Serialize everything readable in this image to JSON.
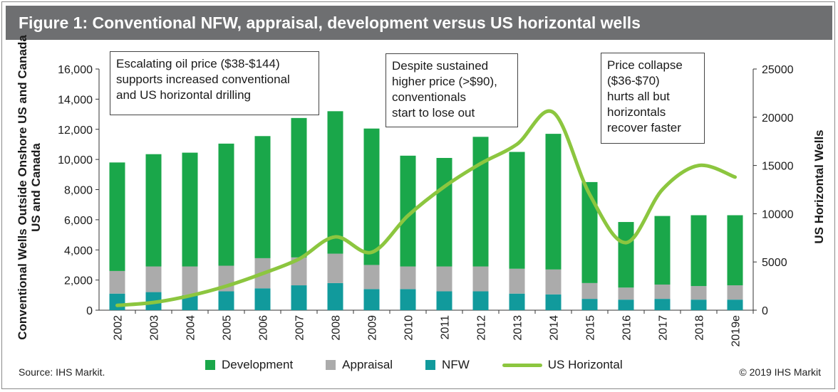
{
  "title": "Figure 1: Conventional NFW, appraisal, development versus US horizontal wells",
  "source": "Source: IHS Markit.",
  "copyright": "© 2019 IHS Markit",
  "annotations": [
    "Escalating oil price ($38-$144)\nsupports increased conventional\nand US horizontal drilling",
    "Despite sustained\nhigher price (>$90),\nconventionals\nstart to lose out",
    "Price collapse\n($36-$70)\nhurts all but\nhorizontals\nrecover faster"
  ],
  "colors": {
    "development": "#1aa74a",
    "appraisal": "#ababab",
    "nfw": "#119a9c",
    "us_horizontal": "#8cc63f"
  },
  "chart_data": {
    "type": "bar",
    "stacked": true,
    "categories": [
      "2002",
      "2003",
      "2004",
      "2005",
      "2006",
      "2007",
      "2008",
      "2009",
      "2010",
      "2011",
      "2012",
      "2013",
      "2014",
      "2015",
      "2016",
      "2017",
      "2018",
      "2019e"
    ],
    "ylabel": "Conventional Wells Outside Onshore US and Canada",
    "ylim": [
      0,
      16000
    ],
    "yticks": [
      "0",
      "2,000",
      "4,000",
      "6,000",
      "8,000",
      "10,000",
      "12,000",
      "14,000",
      "16,000"
    ],
    "y2label": "US Horizontal Wells",
    "y2lim": [
      0,
      25000
    ],
    "y2ticks": [
      "0",
      "5000",
      "10000",
      "15000",
      "20000",
      "25000"
    ],
    "grid": false,
    "legend_position": "bottom",
    "series": [
      {
        "name": "NFW",
        "values": [
          1100,
          1200,
          1000,
          1250,
          1450,
          1650,
          1800,
          1400,
          1400,
          1250,
          1250,
          1100,
          1050,
          750,
          700,
          750,
          700,
          700
        ]
      },
      {
        "name": "Appraisal",
        "values": [
          1500,
          1700,
          1900,
          1700,
          2000,
          1850,
          1950,
          1600,
          1500,
          1650,
          1650,
          1650,
          1650,
          1050,
          800,
          950,
          900,
          950
        ]
      },
      {
        "name": "Development",
        "values": [
          7200,
          7450,
          7550,
          8100,
          8100,
          9250,
          9450,
          9050,
          7350,
          7200,
          8600,
          7750,
          9000,
          6700,
          4350,
          4550,
          4700,
          4650
        ]
      },
      {
        "name": "US Horizontal",
        "type": "line",
        "axis": "right",
        "values": [
          500,
          800,
          1500,
          2500,
          3800,
          5300,
          7600,
          6000,
          9800,
          12800,
          15200,
          17200,
          20500,
          12000,
          7000,
          12500,
          15000,
          13800
        ]
      }
    ]
  }
}
